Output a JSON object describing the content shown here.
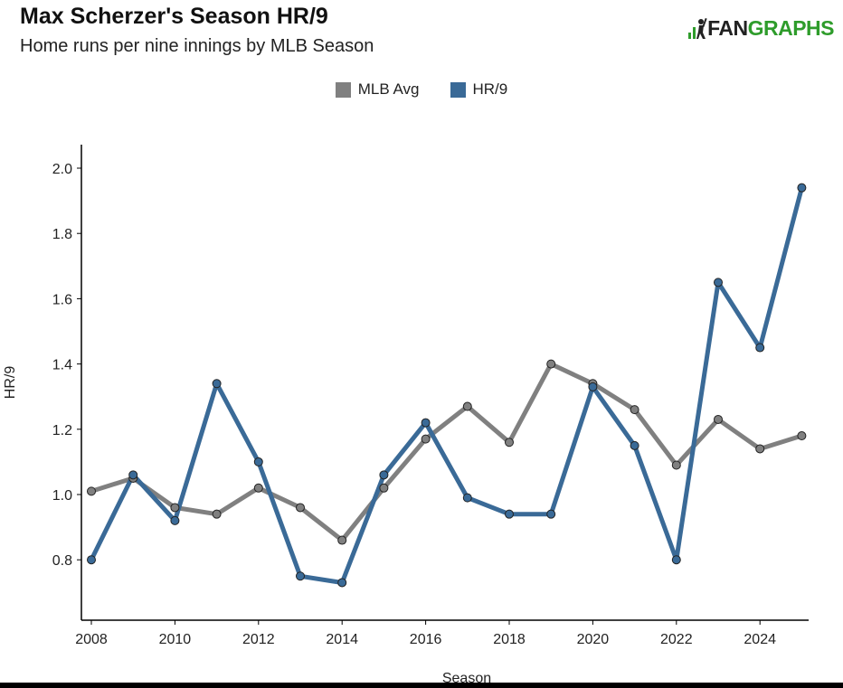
{
  "header": {
    "title": "Max Scherzer's Season HR/9",
    "subtitle": "Home runs per nine innings by MLB Season"
  },
  "logo": {
    "prefix": ".ıll",
    "fan": "FAN",
    "graphs": "GRAPHS",
    "icon": "fangraphs-logo-icon",
    "green": "#2e9c2b"
  },
  "chart_data": {
    "type": "line",
    "xlabel": "Season",
    "ylabel": "HR/9",
    "xlim": [
      2008,
      2025
    ],
    "ylim": [
      0.6,
      2.05
    ],
    "xticks": [
      "2008",
      "2010",
      "2012",
      "2014",
      "2016",
      "2018",
      "2020",
      "2022",
      "2024"
    ],
    "yticks": [
      "0.8",
      "1.0",
      "1.2",
      "1.4",
      "1.6",
      "1.8",
      "2.0"
    ],
    "x": [
      2008,
      2009,
      2010,
      2011,
      2012,
      2013,
      2014,
      2015,
      2016,
      2017,
      2018,
      2019,
      2020,
      2021,
      2022,
      2023,
      2024,
      2025
    ],
    "series": [
      {
        "name": "MLB Avg",
        "color": "#808080",
        "values": [
          1.01,
          1.05,
          0.96,
          0.94,
          1.02,
          0.96,
          0.86,
          1.02,
          1.17,
          1.27,
          1.16,
          1.4,
          1.34,
          1.26,
          1.09,
          1.23,
          1.14,
          1.18
        ]
      },
      {
        "name": "HR/9",
        "color": "#3a6a97",
        "values": [
          0.8,
          1.06,
          0.92,
          1.34,
          1.1,
          0.75,
          0.73,
          1.06,
          1.22,
          0.99,
          0.94,
          0.94,
          1.33,
          1.15,
          0.8,
          1.65,
          1.45,
          1.94
        ]
      }
    ],
    "legend_position": "top-center"
  }
}
